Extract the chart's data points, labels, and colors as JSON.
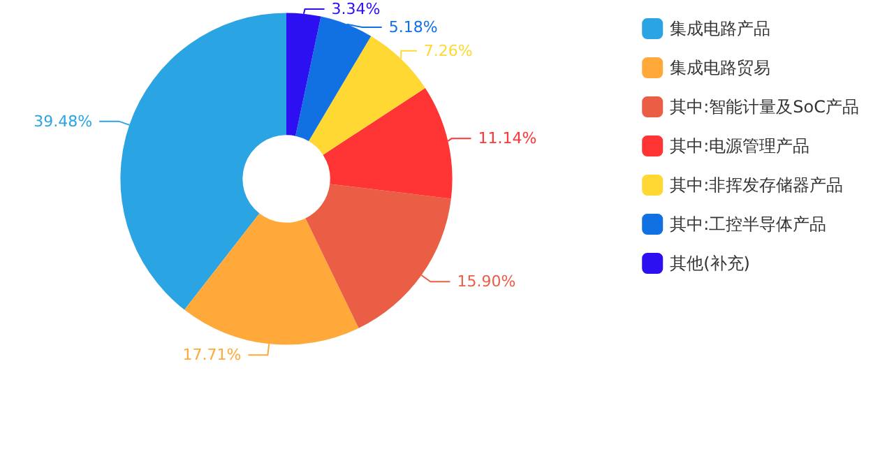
{
  "chart_data": {
    "type": "donut",
    "categories": [
      "集成电路产品",
      "集成电路贸易",
      "其中:智能计量及SoC产品",
      "其中:电源管理产品",
      "其中:非挥发存储器产品",
      "其中:工控半导体产品",
      "其他(补充)"
    ],
    "values": [
      39.48,
      17.71,
      15.9,
      11.14,
      7.26,
      5.18,
      3.34
    ],
    "colors": [
      "#2aa4e3",
      "#ffa93a",
      "#e95e45",
      "#ff3535",
      "#ffd833",
      "#1170e2",
      "#2d10f2"
    ],
    "value_labels": [
      "39.48%",
      "17.71%",
      "15.90%",
      "11.14%",
      "7.26%",
      "5.18%",
      "3.34%"
    ],
    "legend": "top right"
  }
}
